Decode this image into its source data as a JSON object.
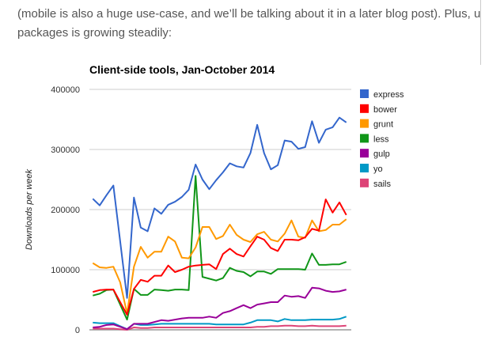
{
  "article": {
    "line1": "(mobile is also a huge use-case, and we’ll be talking about it in a later blog post). Plus, u",
    "line2": "packages is growing steadily:"
  },
  "chart_data": {
    "type": "line",
    "title": "Client-side tools, Jan-October 2014",
    "xlabel": "",
    "ylabel": "Downloads per week",
    "ylim": [
      0,
      400000
    ],
    "yticks": [
      "0",
      "100000",
      "200000",
      "300000",
      "400000"
    ],
    "grid": true,
    "legend_position": "right",
    "points_per_series": 38,
    "series": [
      {
        "name": "express",
        "color": "#3366cc",
        "values": [
          218000,
          207000,
          224000,
          240000,
          147000,
          53000,
          220000,
          170000,
          164000,
          202000,
          193000,
          208000,
          213000,
          221000,
          233000,
          275000,
          250000,
          234000,
          249000,
          262000,
          277000,
          272000,
          270000,
          294000,
          341000,
          294000,
          267000,
          274000,
          315000,
          313000,
          301000,
          304000,
          347000,
          311000,
          333000,
          337000,
          353000,
          345000
        ]
      },
      {
        "name": "bower",
        "color": "#ff0000",
        "values": [
          63000,
          66000,
          67000,
          67000,
          46000,
          25000,
          68000,
          83000,
          80000,
          90000,
          90000,
          107000,
          96000,
          100000,
          105000,
          107000,
          108000,
          109000,
          101000,
          126000,
          135000,
          126000,
          122000,
          139000,
          155000,
          150000,
          136000,
          131000,
          150000,
          150000,
          149000,
          154000,
          168000,
          165000,
          217000,
          195000,
          212000,
          191000
        ]
      },
      {
        "name": "grunt",
        "color": "#ff9900",
        "values": [
          111000,
          104000,
          103000,
          105000,
          79000,
          27000,
          105000,
          138000,
          120000,
          130000,
          130000,
          155000,
          147000,
          120000,
          119000,
          137000,
          171000,
          171000,
          151000,
          156000,
          175000,
          158000,
          150000,
          146000,
          159000,
          163000,
          150000,
          147000,
          160000,
          182000,
          155000,
          153000,
          182000,
          164000,
          166000,
          175000,
          175000,
          184000
        ]
      },
      {
        "name": "less",
        "color": "#109618",
        "values": [
          57000,
          60000,
          66000,
          67000,
          42000,
          17000,
          68000,
          58000,
          58000,
          67000,
          66000,
          65000,
          67000,
          67000,
          66000,
          256000,
          88000,
          85000,
          82000,
          86000,
          103000,
          98000,
          96000,
          89000,
          97000,
          97000,
          93000,
          101000,
          101000,
          101000,
          101000,
          100000,
          127000,
          108000,
          108000,
          109000,
          109000,
          113000
        ]
      },
      {
        "name": "gulp",
        "color": "#990099",
        "values": [
          4000,
          5000,
          8000,
          9000,
          5000,
          1000,
          10000,
          10000,
          10000,
          13000,
          16000,
          15000,
          17000,
          19000,
          20000,
          20000,
          20000,
          22000,
          20000,
          28000,
          31000,
          36000,
          41000,
          36000,
          42000,
          44000,
          46000,
          46000,
          57000,
          55000,
          56000,
          53000,
          70000,
          69000,
          65000,
          63000,
          64000,
          67000
        ]
      },
      {
        "name": "yo",
        "color": "#0099c6",
        "values": [
          12000,
          11000,
          11000,
          11000,
          6000,
          1000,
          10000,
          8000,
          8000,
          9000,
          10000,
          10000,
          10000,
          10000,
          10000,
          10000,
          10000,
          10000,
          9000,
          9000,
          9000,
          9000,
          9000,
          12000,
          16000,
          16000,
          16000,
          14000,
          18000,
          16000,
          16000,
          16000,
          17000,
          17000,
          17000,
          17000,
          18000,
          22000
        ]
      },
      {
        "name": "sails",
        "color": "#dd4477",
        "values": [
          2000,
          2000,
          2000,
          2000,
          1000,
          0,
          4000,
          3000,
          3000,
          4000,
          4000,
          4000,
          4000,
          4000,
          4000,
          4000,
          4000,
          4000,
          4000,
          4000,
          4000,
          4000,
          4000,
          4000,
          5000,
          5000,
          6000,
          6000,
          7000,
          7000,
          6000,
          6000,
          7000,
          6000,
          6000,
          6000,
          6000,
          7000
        ]
      }
    ]
  }
}
